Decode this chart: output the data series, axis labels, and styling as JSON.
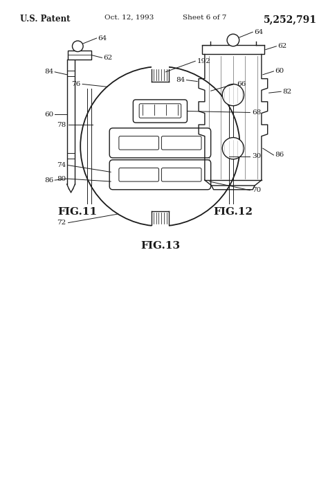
{
  "header_left": "U.S. Patent",
  "header_mid": "Oct. 12, 1993",
  "header_sheet": "Sheet 6 of 7",
  "header_right": "5,252,791",
  "fig13_label": "FIG.13",
  "fig11_label": "FIG.11",
  "fig12_label": "FIG.12",
  "bg_color": "#ffffff",
  "line_color": "#1a1a1a"
}
